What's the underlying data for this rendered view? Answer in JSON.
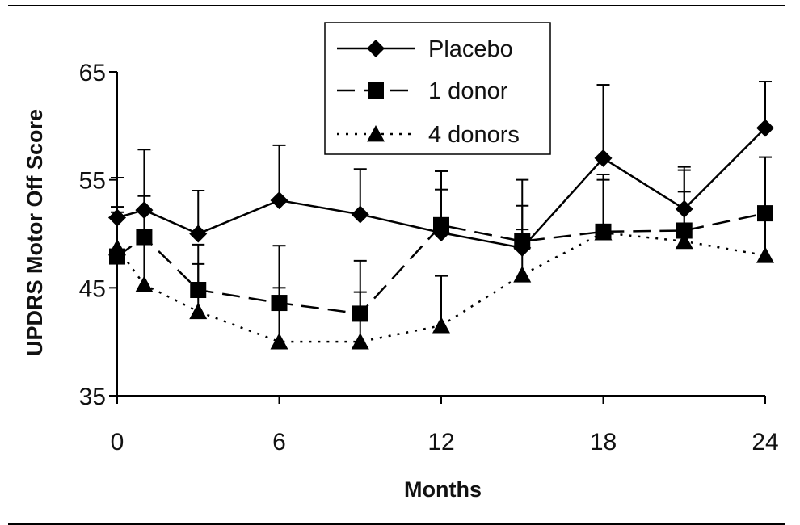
{
  "chart_data": {
    "type": "line",
    "xlabel": "Months",
    "ylabel": "UPDRS Motor Off Score",
    "xlim": [
      0,
      24
    ],
    "ylim": [
      35,
      65
    ],
    "xticks": [
      0,
      6,
      12,
      18,
      24
    ],
    "yticks": [
      35,
      45,
      55,
      65
    ],
    "grid": false,
    "legend_position": "top-center",
    "series": [
      {
        "name": "Placebo",
        "marker": "diamond",
        "line_style": "solid",
        "x": [
          0,
          1,
          3,
          6,
          9,
          12,
          15,
          18,
          21,
          24
        ],
        "y": [
          51.5,
          52.2,
          50.0,
          53.1,
          51.8,
          50.1,
          48.7,
          57.0,
          52.3,
          59.8
        ],
        "error_upper": [
          55.2,
          57.8,
          54.0,
          58.2,
          56.0,
          55.8,
          55.0,
          63.8,
          56.2,
          64.1
        ]
      },
      {
        "name": "1 donor",
        "marker": "square",
        "line_style": "dashed",
        "x": [
          0,
          1,
          3,
          6,
          9,
          12,
          15,
          18,
          21,
          24
        ],
        "y": [
          47.9,
          49.7,
          44.8,
          43.6,
          42.6,
          50.8,
          49.3,
          50.2,
          50.3,
          51.9
        ],
        "error_upper": [
          52.0,
          53.5,
          49.0,
          48.9,
          47.5,
          54.1,
          52.6,
          55.5,
          55.9,
          57.1
        ]
      },
      {
        "name": "4 donors",
        "marker": "triangle",
        "line_style": "dotted",
        "x": [
          0,
          1,
          3,
          6,
          9,
          12,
          15,
          18,
          21,
          24
        ],
        "y": [
          48.7,
          45.3,
          42.8,
          40.0,
          40.0,
          41.5,
          46.2,
          50.1,
          49.3,
          48.0
        ],
        "error_upper": [
          52.5,
          49.5,
          47.2,
          45.0,
          44.6,
          46.1,
          50.4,
          55.0,
          53.9,
          52.0
        ]
      }
    ]
  }
}
